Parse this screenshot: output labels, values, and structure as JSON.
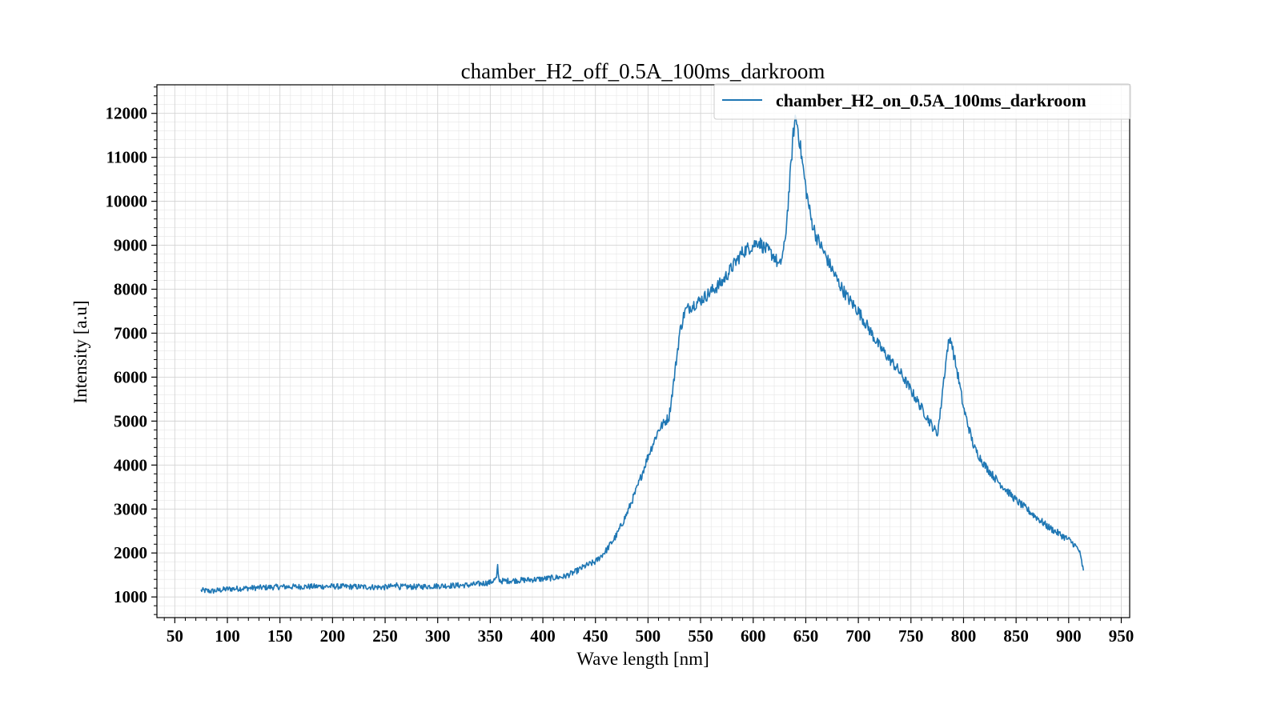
{
  "chart_data": {
    "type": "line",
    "title": "chamber_H2_off_0.5A_100ms_darkroom",
    "xlabel": "Wave length [nm]",
    "ylabel": "Intensity [a.u]",
    "xlim": [
      33,
      958
    ],
    "ylim": [
      530,
      12650
    ],
    "xticks": [
      50,
      100,
      150,
      200,
      250,
      300,
      350,
      400,
      450,
      500,
      550,
      600,
      650,
      700,
      750,
      800,
      850,
      900,
      950
    ],
    "xtick_labels": [
      "50",
      "100",
      "150",
      "200",
      "250",
      "300",
      "350",
      "400",
      "450",
      "500",
      "550",
      "600",
      "650",
      "700",
      "750",
      "800",
      "850",
      "900",
      "950"
    ],
    "yticks": [
      1000,
      2000,
      3000,
      4000,
      5000,
      6000,
      7000,
      8000,
      9000,
      10000,
      11000,
      12000
    ],
    "ytick_labels": [
      "1000",
      "2000",
      "3000",
      "4000",
      "5000",
      "6000",
      "7000",
      "8000",
      "9000",
      "10000",
      "11000",
      "12000"
    ],
    "grid": true,
    "minor_grid": true,
    "legend": "top-right",
    "series": [
      {
        "name": "chamber_H2_on_0.5A_100ms_darkroom",
        "color": "#1f77b4",
        "x": [
          75,
          85,
          100,
          120,
          150,
          200,
          250,
          260,
          261,
          262,
          280,
          300,
          330,
          350,
          356,
          357,
          358,
          360,
          380,
          400,
          420,
          430,
          440,
          450,
          460,
          470,
          480,
          490,
          500,
          510,
          520,
          525,
          530,
          535,
          540,
          550,
          560,
          570,
          580,
          590,
          600,
          605,
          610,
          620,
          625,
          630,
          635,
          638,
          640,
          642,
          645,
          650,
          655,
          660,
          670,
          680,
          690,
          700,
          710,
          720,
          730,
          740,
          750,
          760,
          770,
          775,
          778,
          780,
          785,
          788,
          790,
          795,
          800,
          810,
          820,
          830,
          840,
          850,
          860,
          870,
          880,
          890,
          900,
          905,
          910,
          914
        ],
        "y": [
          1150,
          1130,
          1180,
          1200,
          1230,
          1240,
          1220,
          1250,
          1380,
          1230,
          1230,
          1250,
          1270,
          1330,
          1420,
          1700,
          1420,
          1360,
          1380,
          1410,
          1460,
          1560,
          1700,
          1800,
          2050,
          2400,
          2900,
          3500,
          4200,
          4800,
          5100,
          6000,
          7000,
          7500,
          7600,
          7750,
          7950,
          8150,
          8500,
          8850,
          9000,
          9100,
          8950,
          8750,
          8500,
          9000,
          10500,
          11500,
          11900,
          11750,
          11200,
          10300,
          9600,
          9200,
          8700,
          8200,
          7800,
          7500,
          7100,
          6700,
          6400,
          6100,
          5700,
          5300,
          4900,
          4700,
          5200,
          5700,
          6700,
          6900,
          6600,
          6000,
          5300,
          4400,
          4000,
          3700,
          3450,
          3200,
          3000,
          2800,
          2600,
          2450,
          2300,
          2200,
          2050,
          1600
        ]
      }
    ]
  }
}
